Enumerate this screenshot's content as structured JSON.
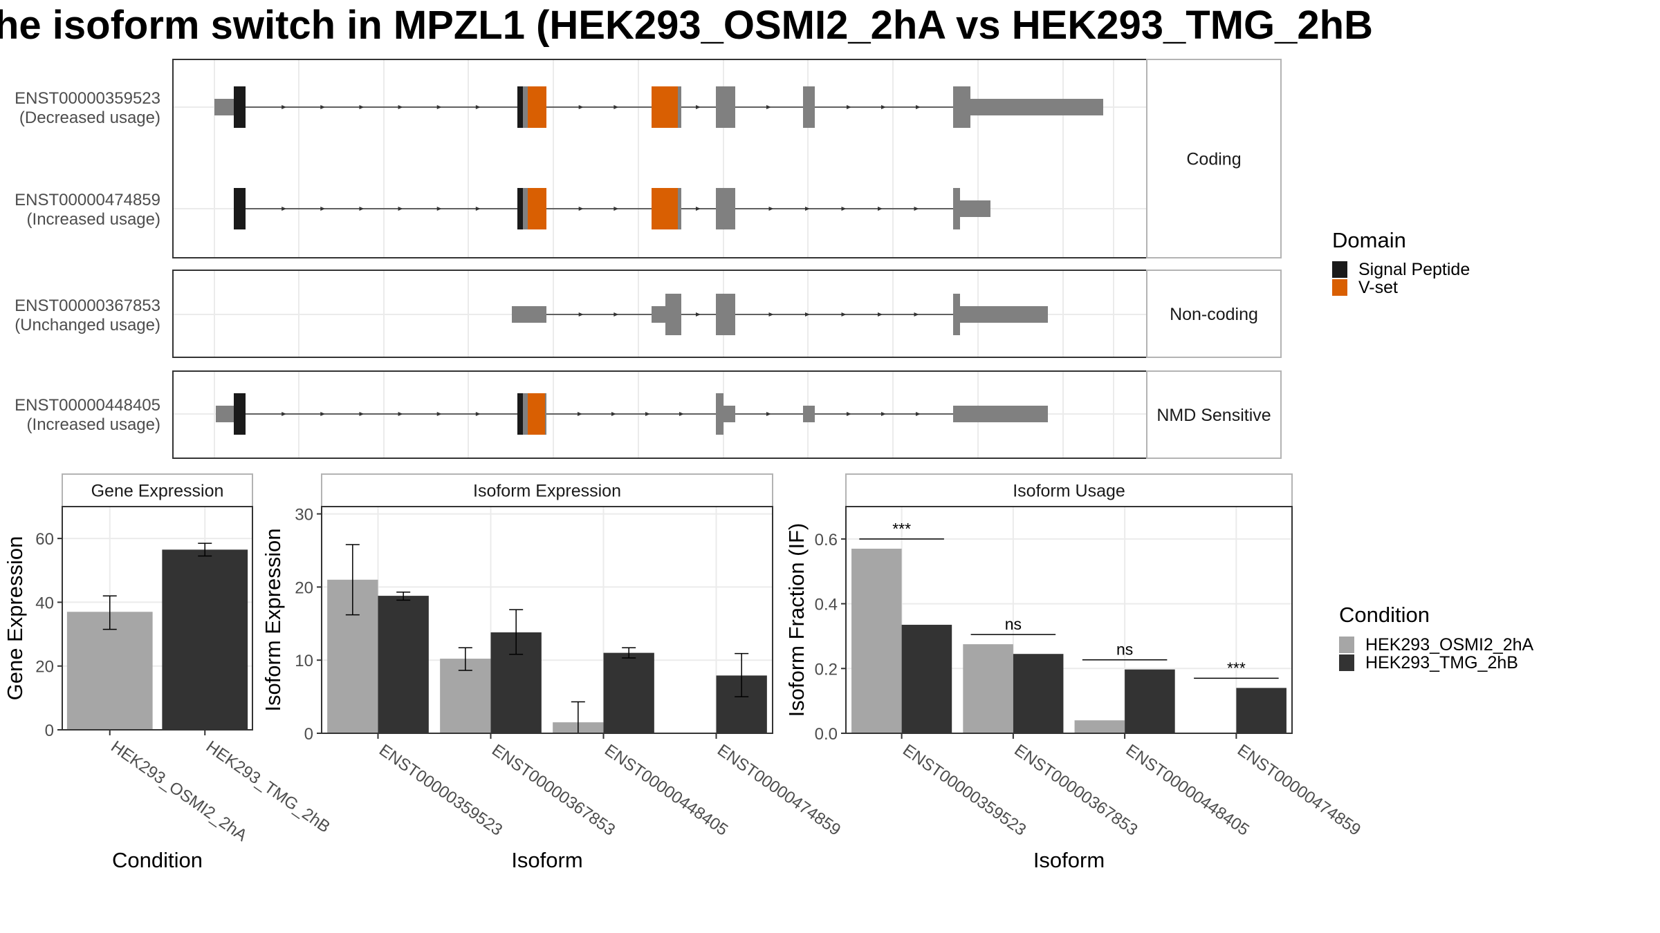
{
  "title": "he isoform switch in MPZL1 (HEK293_OSMI2_2hA vs HEK293_TMG_2hB",
  "colors": {
    "exon": "#808080",
    "signal_peptide": "#1a1a1a",
    "v_set": "#d95f02",
    "cond_a": "#a6a6a6",
    "cond_b": "#333333",
    "panel_border": "#333333",
    "strip_border": "#b3b3b3",
    "grid": "#ebebeb"
  },
  "structure": {
    "groups": [
      {
        "label": "Coding",
        "isoforms": [
          {
            "id": "ENST00000359523",
            "usage": "(Decreased usage)"
          },
          {
            "id": "ENST00000474859",
            "usage": "(Increased usage)"
          }
        ]
      },
      {
        "label": "Non-coding",
        "isoforms": [
          {
            "id": "ENST00000367853",
            "usage": "(Unchanged usage)"
          }
        ]
      },
      {
        "label": "NMD Sensitive",
        "isoforms": [
          {
            "id": "ENST00000448405",
            "usage": "(Increased usage)"
          }
        ]
      }
    ]
  },
  "legends": {
    "domain": {
      "title": "Domain",
      "items": [
        "Signal Peptide",
        "V-set"
      ]
    },
    "condition": {
      "title": "Condition",
      "items": [
        "HEK293_OSMI2_2hA",
        "HEK293_TMG_2hB"
      ]
    }
  },
  "chart_data": [
    {
      "type": "bar",
      "title": "Gene Expression",
      "xlabel": "Condition",
      "ylabel": "Gene Expression",
      "ylim": [
        0,
        70
      ],
      "yticks": [
        0,
        20,
        40,
        60
      ],
      "categories": [
        "HEK293_OSMI2_2hA",
        "HEK293_TMG_2hB"
      ],
      "values": [
        37,
        56.5
      ],
      "error_low": [
        31.5,
        54.5
      ],
      "error_high": [
        42,
        58.5
      ],
      "grid": true
    },
    {
      "type": "bar",
      "title": "Isoform Expression",
      "xlabel": "Isoform",
      "ylabel": "Isoform Expression",
      "ylim": [
        0,
        31
      ],
      "yticks": [
        0,
        10,
        20,
        30
      ],
      "categories": [
        "ENST00000359523",
        "ENST00000367853",
        "ENST00000448405",
        "ENST00000474859"
      ],
      "series": [
        {
          "name": "HEK293_OSMI2_2hA",
          "values": [
            21,
            10.2,
            1.5,
            0
          ],
          "error_low": [
            16.2,
            8.6,
            0,
            0
          ],
          "error_high": [
            25.8,
            11.7,
            4.3,
            0
          ]
        },
        {
          "name": "HEK293_TMG_2hB",
          "values": [
            18.8,
            13.8,
            11,
            7.9
          ],
          "error_low": [
            18.2,
            10.8,
            10.3,
            5
          ],
          "error_high": [
            19.3,
            16.9,
            11.7,
            10.9
          ]
        }
      ],
      "grid": true
    },
    {
      "type": "bar",
      "title": "Isoform Usage",
      "xlabel": "Isoform",
      "ylabel": "Isoform Fraction (IF)",
      "ylim": [
        0,
        0.7
      ],
      "yticks": [
        "0.0",
        "0.2",
        "0.4",
        "0.6"
      ],
      "categories": [
        "ENST00000359523",
        "ENST00000367853",
        "ENST00000448405",
        "ENST00000474859"
      ],
      "series": [
        {
          "name": "HEK293_OSMI2_2hA",
          "values": [
            0.57,
            0.275,
            0.04,
            0
          ]
        },
        {
          "name": "HEK293_TMG_2hB",
          "values": [
            0.335,
            0.245,
            0.197,
            0.14
          ]
        }
      ],
      "significance": [
        "***",
        "ns",
        "ns",
        "***"
      ],
      "grid": true
    }
  ]
}
